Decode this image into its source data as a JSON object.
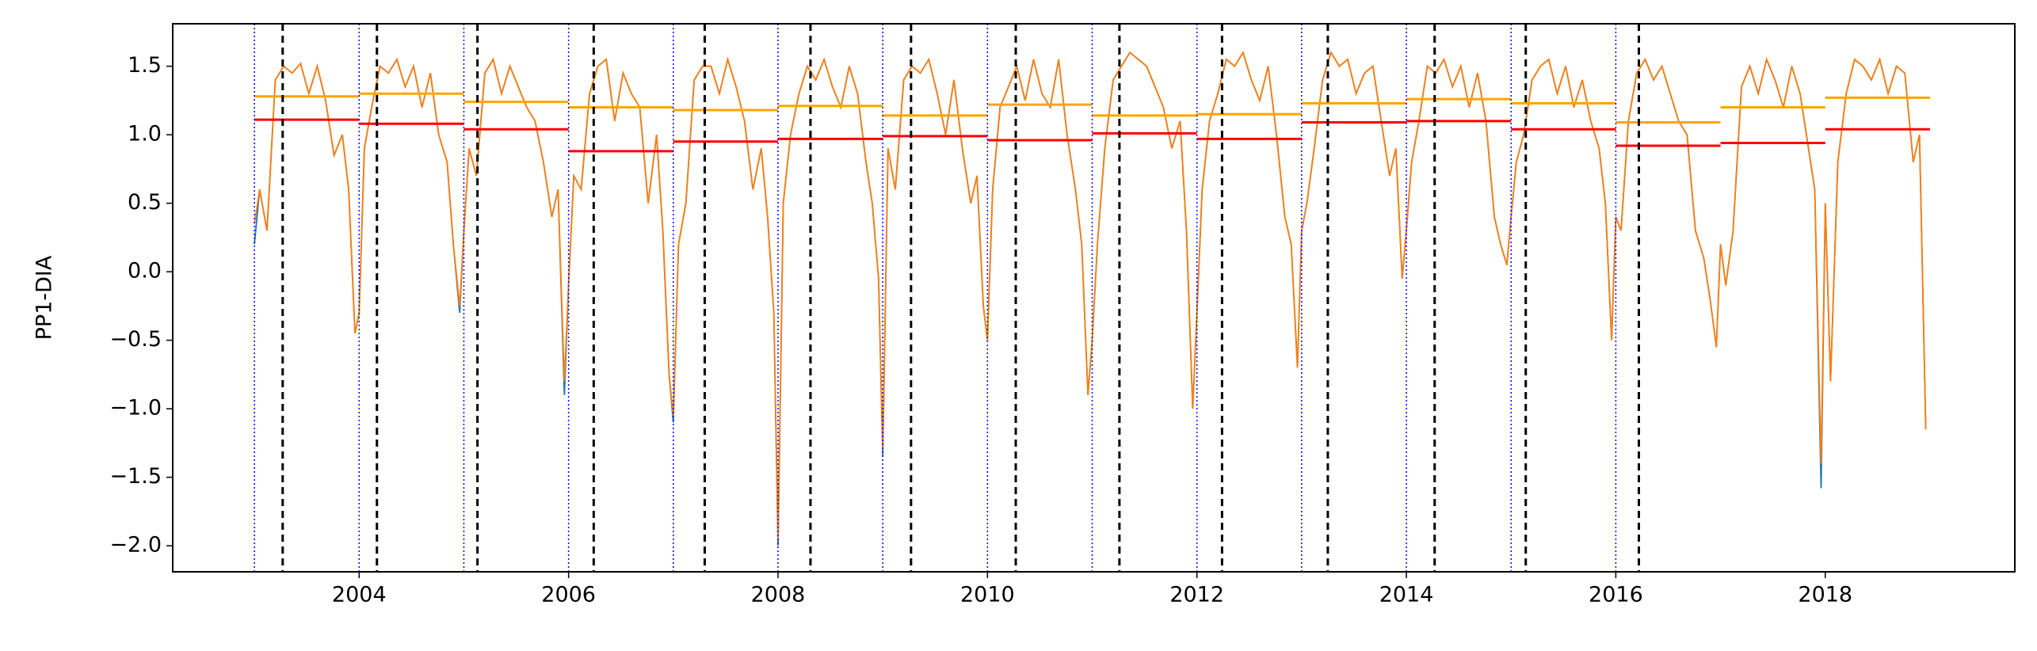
{
  "chart_data": {
    "type": "line",
    "ylabel": "PP1-DIA",
    "xlim": [
      2002.22,
      2019.81
    ],
    "ylim": [
      -2.19,
      1.81
    ],
    "xticks": [
      2004,
      2006,
      2008,
      2010,
      2012,
      2014,
      2016,
      2018
    ],
    "yticks": [
      {
        "value": -2,
        "label": "−2.0"
      },
      {
        "value": -1.5,
        "label": "−1.5"
      },
      {
        "value": -1,
        "label": "−1.0"
      },
      {
        "value": -0.5,
        "label": "−0.5"
      },
      {
        "value": 0,
        "label": "0.0"
      },
      0.5,
      {
        "value": 1,
        "label": "1.0"
      },
      1.5
    ],
    "x": [
      2003,
      2003.05,
      2003.12,
      2003.2,
      2003.28,
      2003.36,
      2003.44,
      2003.52,
      2003.6,
      2003.68,
      2003.76,
      2003.84,
      2003.9,
      2003.96,
      2004,
      2004.05,
      2004.12,
      2004.2,
      2004.28,
      2004.36,
      2004.44,
      2004.52,
      2004.6,
      2004.68,
      2004.76,
      2004.84,
      2004.9,
      2004.96,
      2005,
      2005.05,
      2005.12,
      2005.2,
      2005.28,
      2005.36,
      2005.44,
      2005.52,
      2005.6,
      2005.68,
      2005.76,
      2005.84,
      2005.9,
      2005.96,
      2006,
      2006.05,
      2006.12,
      2006.2,
      2006.28,
      2006.36,
      2006.44,
      2006.52,
      2006.6,
      2006.68,
      2006.76,
      2006.84,
      2006.9,
      2006.96,
      2007,
      2007.05,
      2007.12,
      2007.2,
      2007.28,
      2007.36,
      2007.44,
      2007.52,
      2007.6,
      2007.68,
      2007.76,
      2007.84,
      2007.9,
      2007.96,
      2008,
      2008.05,
      2008.12,
      2008.2,
      2008.28,
      2008.36,
      2008.44,
      2008.52,
      2008.6,
      2008.68,
      2008.76,
      2008.84,
      2008.9,
      2008.96,
      2009,
      2009.05,
      2009.12,
      2009.2,
      2009.28,
      2009.36,
      2009.44,
      2009.52,
      2009.6,
      2009.68,
      2009.76,
      2009.84,
      2009.9,
      2009.96,
      2010,
      2010.05,
      2010.12,
      2010.2,
      2010.28,
      2010.36,
      2010.44,
      2010.52,
      2010.6,
      2010.68,
      2010.76,
      2010.84,
      2010.9,
      2010.96,
      2011,
      2011.05,
      2011.12,
      2011.2,
      2011.28,
      2011.36,
      2011.44,
      2011.52,
      2011.6,
      2011.68,
      2011.76,
      2011.84,
      2011.9,
      2011.96,
      2012,
      2012.05,
      2012.12,
      2012.2,
      2012.28,
      2012.36,
      2012.44,
      2012.52,
      2012.6,
      2012.68,
      2012.76,
      2012.84,
      2012.9,
      2012.96,
      2013,
      2013.05,
      2013.12,
      2013.2,
      2013.28,
      2013.36,
      2013.44,
      2013.52,
      2013.6,
      2013.68,
      2013.76,
      2013.84,
      2013.9,
      2013.96,
      2014,
      2014.05,
      2014.12,
      2014.2,
      2014.28,
      2014.36,
      2014.44,
      2014.52,
      2014.6,
      2014.68,
      2014.76,
      2014.84,
      2014.9,
      2014.96,
      2015,
      2015.05,
      2015.12,
      2015.2,
      2015.28,
      2015.36,
      2015.44,
      2015.52,
      2015.6,
      2015.68,
      2015.76,
      2015.84,
      2015.9,
      2015.96,
      2016,
      2016.05,
      2016.12,
      2016.2,
      2016.28,
      2016.36,
      2016.44,
      2016.52,
      2016.6,
      2016.68,
      2016.76,
      2016.84,
      2016.9,
      2016.96,
      2017,
      2017.05,
      2017.12,
      2017.2,
      2017.28,
      2017.36,
      2017.44,
      2017.52,
      2017.6,
      2017.68,
      2017.76,
      2017.84,
      2017.9,
      2017.96,
      2018,
      2018.05,
      2018.12,
      2018.2,
      2018.28,
      2018.36,
      2018.44,
      2018.52,
      2018.6,
      2018.68,
      2018.76,
      2018.84,
      2018.9,
      2018.96
    ],
    "series": [
      {
        "color": "#1f77b4",
        "values": [
          0.2,
          0.6,
          0.3,
          1.4,
          1.5,
          1.45,
          1.52,
          1.3,
          1.5,
          1.25,
          0.85,
          1.0,
          0.6,
          -0.45,
          -0.3,
          0.9,
          1.2,
          1.5,
          1.45,
          1.55,
          1.35,
          1.5,
          1.2,
          1.45,
          1.0,
          0.8,
          0.2,
          -0.3,
          0.3,
          0.9,
          0.7,
          1.45,
          1.55,
          1.3,
          1.5,
          1.35,
          1.2,
          1.1,
          0.8,
          0.4,
          0.6,
          -0.9,
          -0.1,
          0.7,
          0.6,
          1.3,
          1.5,
          1.55,
          1.1,
          1.45,
          1.3,
          1.2,
          0.5,
          1.0,
          0.3,
          -0.75,
          -1.1,
          0.2,
          0.5,
          1.4,
          1.5,
          1.5,
          1.3,
          1.55,
          1.35,
          1.1,
          0.6,
          0.9,
          0.4,
          -0.3,
          -2.0,
          0.5,
          1.0,
          1.3,
          1.5,
          1.4,
          1.55,
          1.35,
          1.2,
          1.5,
          1.3,
          0.8,
          0.5,
          -0.05,
          -1.35,
          0.9,
          0.6,
          1.4,
          1.5,
          1.45,
          1.55,
          1.3,
          1.0,
          1.4,
          0.9,
          0.5,
          0.7,
          -0.25,
          -0.5,
          0.6,
          1.2,
          1.35,
          1.5,
          1.25,
          1.55,
          1.3,
          1.2,
          1.55,
          1.0,
          0.6,
          0.2,
          -0.9,
          -0.5,
          0.2,
          0.9,
          1.4,
          1.5,
          1.6,
          1.55,
          1.5,
          1.35,
          1.2,
          0.9,
          1.1,
          0.3,
          -1.0,
          -0.3,
          0.6,
          1.1,
          1.3,
          1.55,
          1.5,
          1.6,
          1.4,
          1.25,
          1.5,
          1.0,
          0.4,
          0.2,
          -0.7,
          0.3,
          0.5,
          0.9,
          1.4,
          1.6,
          1.5,
          1.55,
          1.3,
          1.45,
          1.5,
          1.1,
          0.7,
          0.9,
          -0.05,
          0.3,
          0.8,
          1.1,
          1.5,
          1.45,
          1.55,
          1.35,
          1.5,
          1.2,
          1.45,
          1.1,
          0.4,
          0.2,
          0.05,
          0.4,
          0.8,
          1.0,
          1.4,
          1.5,
          1.55,
          1.3,
          1.5,
          1.2,
          1.4,
          1.1,
          0.9,
          0.5,
          -0.5,
          0.4,
          0.3,
          1.1,
          1.45,
          1.55,
          1.4,
          1.5,
          1.3,
          1.1,
          1.0,
          0.3,
          0.1,
          -0.2,
          -0.55,
          0.2,
          -0.1,
          0.3,
          1.35,
          1.5,
          1.3,
          1.55,
          1.4,
          1.2,
          1.5,
          1.3,
          0.9,
          0.6,
          -1.58,
          0.5,
          -0.8,
          0.8,
          1.3,
          1.55,
          1.5,
          1.4,
          1.55,
          1.3,
          1.5,
          1.45,
          0.8,
          1.0,
          -1.15
        ]
      },
      {
        "color": "#ff7f0e",
        "values": [
          0.35,
          0.6,
          0.3,
          1.4,
          1.5,
          1.45,
          1.52,
          1.3,
          1.5,
          1.25,
          0.85,
          1.0,
          0.6,
          -0.45,
          -0.3,
          0.9,
          1.2,
          1.5,
          1.45,
          1.55,
          1.35,
          1.5,
          1.2,
          1.45,
          1.0,
          0.8,
          0.2,
          -0.25,
          0.3,
          0.9,
          0.7,
          1.45,
          1.55,
          1.3,
          1.5,
          1.35,
          1.2,
          1.1,
          0.8,
          0.4,
          0.6,
          -0.8,
          -0.1,
          0.7,
          0.6,
          1.3,
          1.5,
          1.55,
          1.1,
          1.45,
          1.3,
          1.2,
          0.5,
          1.0,
          0.3,
          -0.75,
          -1.05,
          0.2,
          0.5,
          1.4,
          1.5,
          1.5,
          1.3,
          1.55,
          1.35,
          1.1,
          0.6,
          0.9,
          0.4,
          -0.3,
          -1.95,
          0.5,
          1.0,
          1.3,
          1.5,
          1.4,
          1.55,
          1.35,
          1.2,
          1.5,
          1.3,
          0.8,
          0.5,
          -0.05,
          -1.3,
          0.9,
          0.6,
          1.4,
          1.5,
          1.45,
          1.55,
          1.3,
          1.0,
          1.4,
          0.9,
          0.5,
          0.7,
          -0.25,
          -0.5,
          0.6,
          1.2,
          1.35,
          1.5,
          1.25,
          1.55,
          1.3,
          1.2,
          1.55,
          1.0,
          0.6,
          0.2,
          -0.9,
          -0.5,
          0.2,
          0.9,
          1.4,
          1.5,
          1.6,
          1.55,
          1.5,
          1.35,
          1.2,
          0.9,
          1.1,
          0.3,
          -1.0,
          -0.3,
          0.6,
          1.1,
          1.3,
          1.55,
          1.5,
          1.6,
          1.4,
          1.25,
          1.5,
          1.0,
          0.4,
          0.2,
          -0.7,
          0.3,
          0.5,
          0.9,
          1.4,
          1.6,
          1.5,
          1.55,
          1.3,
          1.45,
          1.5,
          1.1,
          0.7,
          0.9,
          -0.05,
          0.3,
          0.8,
          1.1,
          1.5,
          1.45,
          1.55,
          1.35,
          1.5,
          1.2,
          1.45,
          1.1,
          0.4,
          0.2,
          0.05,
          0.4,
          0.8,
          1.0,
          1.4,
          1.5,
          1.55,
          1.3,
          1.5,
          1.2,
          1.4,
          1.1,
          0.9,
          0.5,
          -0.5,
          0.4,
          0.3,
          1.1,
          1.45,
          1.55,
          1.4,
          1.5,
          1.3,
          1.1,
          1.0,
          0.3,
          0.1,
          -0.2,
          -0.55,
          0.2,
          -0.1,
          0.3,
          1.35,
          1.5,
          1.3,
          1.55,
          1.4,
          1.2,
          1.5,
          1.3,
          0.9,
          0.6,
          -1.4,
          0.5,
          -0.8,
          0.8,
          1.3,
          1.55,
          1.5,
          1.4,
          1.55,
          1.3,
          1.5,
          1.45,
          0.8,
          1.0,
          -1.15
        ]
      }
    ],
    "segment_edges": [
      2003,
      2004,
      2005,
      2006,
      2007,
      2008,
      2009,
      2010,
      2011,
      2012,
      2013,
      2014,
      2015,
      2016,
      2017,
      2018,
      2019
    ],
    "segments": [
      {
        "color": "#ffa500",
        "values": [
          1.28,
          1.3,
          1.24,
          1.2,
          1.18,
          1.21,
          1.14,
          1.22,
          1.14,
          1.15,
          1.23,
          1.26,
          1.23,
          1.09,
          1.2,
          1.27
        ]
      },
      {
        "color": "#ff0000",
        "values": [
          1.11,
          1.08,
          1.04,
          0.88,
          0.95,
          0.97,
          0.99,
          0.96,
          1.01,
          0.97,
          1.09,
          1.1,
          1.04,
          0.92,
          0.94,
          1.04
        ]
      }
    ],
    "year_lines": {
      "color": "#0000ff",
      "x": [
        2003,
        2004,
        2005,
        2006,
        2007,
        2008,
        2009,
        2010,
        2011,
        2012,
        2013,
        2014,
        2015,
        2016
      ]
    },
    "break_lines": {
      "color": "#000000",
      "x": [
        2003.27,
        2004.17,
        2005.13,
        2006.24,
        2007.3,
        2008.31,
        2009.27,
        2010.27,
        2011.26,
        2012.24,
        2013.25,
        2014.27,
        2015.14,
        2016.22
      ]
    }
  }
}
